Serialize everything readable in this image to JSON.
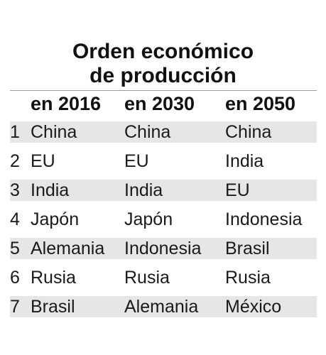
{
  "title": {
    "line1": "Orden económico",
    "line2": "de producción"
  },
  "columns": [
    "en 2016",
    "en 2030",
    "en 2050"
  ],
  "rows": [
    {
      "rank": "1",
      "c2016": "China",
      "c2030": "China",
      "c2050": "China"
    },
    {
      "rank": "2",
      "c2016": "EU",
      "c2030": "EU",
      "c2050": "India"
    },
    {
      "rank": "3",
      "c2016": "India",
      "c2030": "India",
      "c2050": "EU"
    },
    {
      "rank": "4",
      "c2016": "Japón",
      "c2030": "Japón",
      "c2050": "Indonesia"
    },
    {
      "rank": "5",
      "c2016": "Alemania",
      "c2030": "Indonesia",
      "c2050": "Brasil"
    },
    {
      "rank": "6",
      "c2016": "Rusia",
      "c2030": "Rusia",
      "c2050": "Rusia"
    },
    {
      "rank": "7",
      "c2016": "Brasil",
      "c2030": "Alemania",
      "c2050": "México"
    }
  ],
  "colors": {
    "row_shade": "#e6e6e6",
    "text": "#1a1a1a"
  }
}
